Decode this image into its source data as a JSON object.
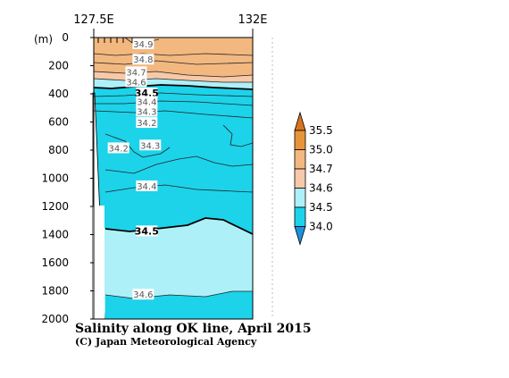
{
  "chart_data": {
    "type": "heatmap",
    "title": "Salinity along OK line, April 2015",
    "credit": "(C) Japan Meteorological Agency",
    "x_ticks_top": [
      "127.5E",
      "132E"
    ],
    "y_unit_label": "(m)",
    "y_ticks": [
      0,
      200,
      400,
      600,
      800,
      1000,
      1200,
      1400,
      1600,
      1800,
      2000
    ],
    "ylim": [
      2000,
      0
    ],
    "xlim": [
      127.5,
      132
    ],
    "colorbar": {
      "levels": [
        "34.0",
        "34.5",
        "34.6",
        "34.7",
        "35.0",
        "35.5"
      ],
      "colors": [
        "#1e90e0",
        "#1cd3ea",
        "#aef0f8",
        "#f7c9a8",
        "#f2b880",
        "#e8943a",
        "#d9741e"
      ]
    },
    "contour_labels": [
      {
        "text": "34.9",
        "lon": 128.9,
        "depth": 50
      },
      {
        "text": "34.8",
        "lon": 128.9,
        "depth": 160
      },
      {
        "text": "34.7",
        "lon": 128.7,
        "depth": 250
      },
      {
        "text": "34.6",
        "lon": 128.7,
        "depth": 320
      },
      {
        "text": "34.5",
        "lon": 129.0,
        "depth": 400
      },
      {
        "text": "34.4",
        "lon": 129.0,
        "depth": 460
      },
      {
        "text": "34.3",
        "lon": 129.0,
        "depth": 530
      },
      {
        "text": "34.2",
        "lon": 129.0,
        "depth": 610
      },
      {
        "text": "34.2",
        "lon": 128.2,
        "depth": 790
      },
      {
        "text": "34.3",
        "lon": 129.1,
        "depth": 770
      },
      {
        "text": "34.4",
        "lon": 129.0,
        "depth": 1060
      },
      {
        "text": "34.5",
        "lon": 129.0,
        "depth": 1380
      },
      {
        "text": "34.6",
        "lon": 128.9,
        "depth": 1830
      }
    ]
  }
}
